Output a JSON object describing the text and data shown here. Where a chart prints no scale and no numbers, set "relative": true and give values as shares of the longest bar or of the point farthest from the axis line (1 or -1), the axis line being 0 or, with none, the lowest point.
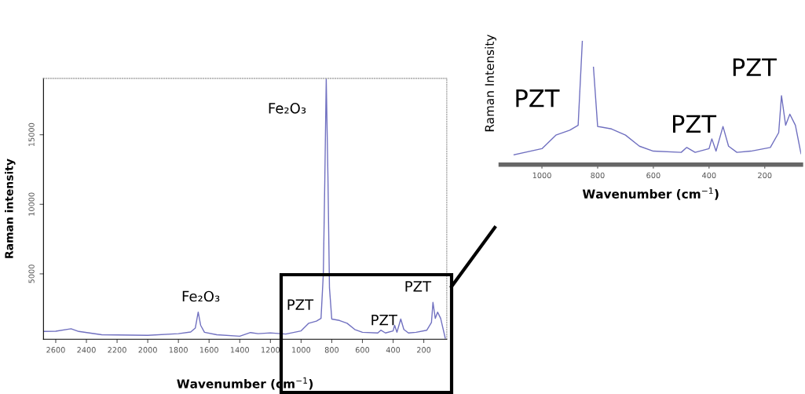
{
  "chart_data": [
    {
      "type": "line",
      "xlabel": "Wavenumber (cm$^{−1}$)",
      "ylabel": "Raman intensity",
      "x": [
        2680,
        2600,
        2500,
        2450,
        2300,
        2000,
        1800,
        1720,
        1690,
        1671,
        1655,
        1630,
        1550,
        1400,
        1330,
        1280,
        1200,
        1100,
        1000,
        950,
        900,
        870,
        855,
        845,
        836,
        825,
        815,
        800,
        750,
        700,
        650,
        600,
        500,
        480,
        450,
        400,
        390,
        375,
        350,
        330,
        300,
        250,
        180,
        150,
        140,
        125,
        110,
        90,
        60
      ],
      "series": [
        {
          "color": "#7070c0",
          "values": [
            860,
            880,
            1050,
            860,
            620,
            580,
            700,
            820,
            1100,
            2250,
            1300,
            800,
            620,
            520,
            780,
            700,
            760,
            670,
            900,
            1450,
            1600,
            1800,
            5000,
            12000,
            19000,
            12000,
            4000,
            1750,
            1650,
            1450,
            1000,
            800,
            750,
            950,
            750,
            900,
            1300,
            800,
            1750,
            1000,
            750,
            800,
            950,
            1500,
            2950,
            1800,
            2250,
            1800,
            380
          ]
        }
      ],
      "xlim": [
        2680,
        50
      ],
      "xticks": [
        2600,
        2400,
        2200,
        2000,
        1800,
        1600,
        1400,
        1200,
        1000,
        800,
        600,
        400,
        200
      ],
      "ylim": [
        300,
        19050
      ],
      "yticks": [
        5000,
        10000,
        15000
      ],
      "annotations": [
        "Fe₂O₃",
        "Fe₂O₃",
        "PZT",
        "PZT",
        "PZT"
      ]
    },
    {
      "type": "line",
      "xlabel": "Wavenumber (cm$^{−1}$)",
      "ylabel": "Raman Intensity",
      "relative": true,
      "x": [
        1100,
        1000,
        950,
        900,
        870,
        855,
        845,
        836,
        825,
        815,
        800,
        750,
        700,
        650,
        600,
        500,
        480,
        450,
        400,
        390,
        375,
        350,
        330,
        300,
        250,
        180,
        150,
        140,
        125,
        110,
        90,
        70
      ],
      "series": [
        {
          "color": "#7070c0",
          "values": [
            0.08,
            0.13,
            0.24,
            0.28,
            0.32,
            1,
            null,
            null,
            null,
            0.79,
            0.31,
            0.29,
            0.24,
            0.15,
            0.11,
            0.1,
            0.14,
            0.1,
            0.13,
            0.21,
            0.11,
            0.31,
            0.15,
            0.1,
            0.11,
            0.14,
            0.26,
            0.56,
            0.32,
            0.41,
            0.32,
            0.09
          ]
        }
      ],
      "xlim": [
        1148,
        70
      ],
      "xticks": [
        1000,
        800,
        600,
        400,
        200
      ],
      "tick_labels": "x",
      "annotations": [
        "PZT",
        "PZT",
        "PZT"
      ]
    }
  ]
}
